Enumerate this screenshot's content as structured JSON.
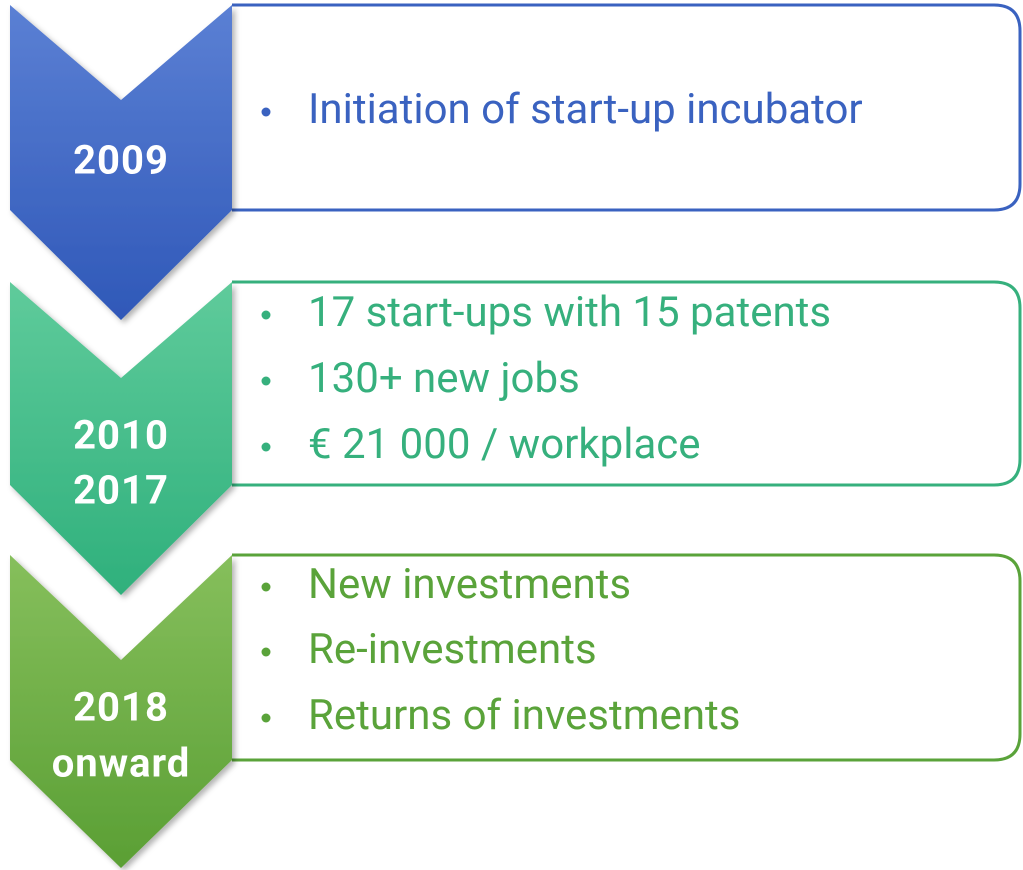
{
  "stages": [
    {
      "label": [
        "2009"
      ],
      "items": [
        "Initiation of start-up incubator"
      ]
    },
    {
      "label": [
        "2010",
        "2017"
      ],
      "items": [
        "17 start-ups with 15 patents",
        "130+ new jobs",
        "€ 21 000 / workplace"
      ]
    },
    {
      "label": [
        "2018",
        "onward"
      ],
      "items": [
        "New investments",
        "Re-investments",
        "Returns of investments"
      ]
    }
  ]
}
